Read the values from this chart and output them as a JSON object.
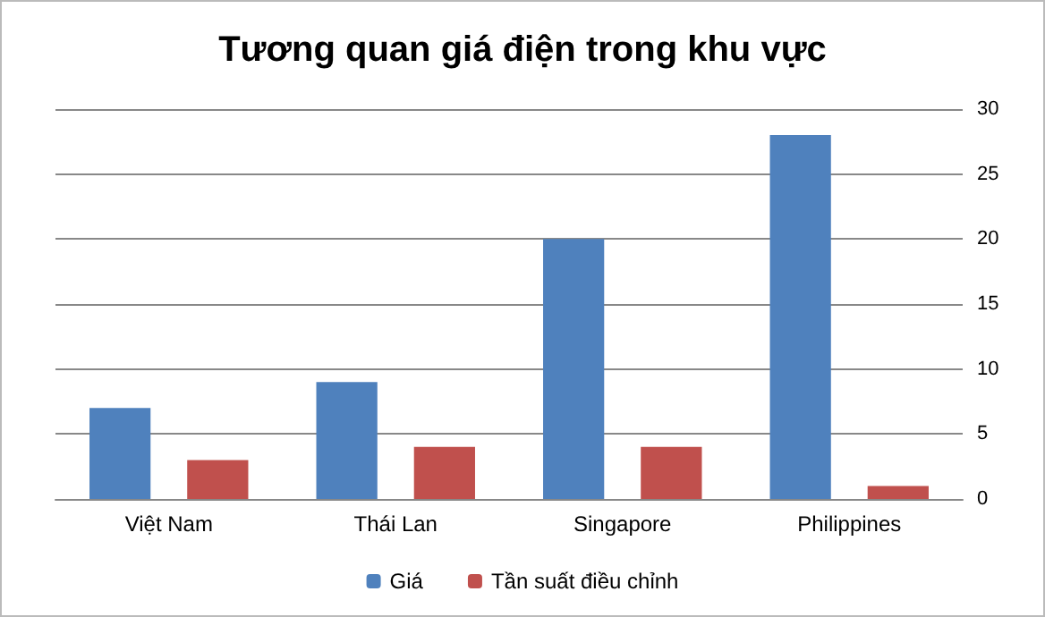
{
  "chart_data": {
    "type": "bar",
    "title": "Tương quan giá điện trong khu vực",
    "categories": [
      "Việt Nam",
      "Thái Lan",
      "Singapore",
      "Philippines"
    ],
    "series": [
      {
        "name": "Giá",
        "color": "#4f81bd",
        "values": [
          7,
          9,
          20,
          28
        ]
      },
      {
        "name": "Tần suất điều chỉnh",
        "color": "#c0504d",
        "values": [
          3,
          4,
          4,
          1
        ]
      }
    ],
    "ylim": [
      0,
      30
    ],
    "yticks": [
      0,
      5,
      10,
      15,
      20,
      25,
      30
    ],
    "grid": "y",
    "legend": "bottom"
  }
}
